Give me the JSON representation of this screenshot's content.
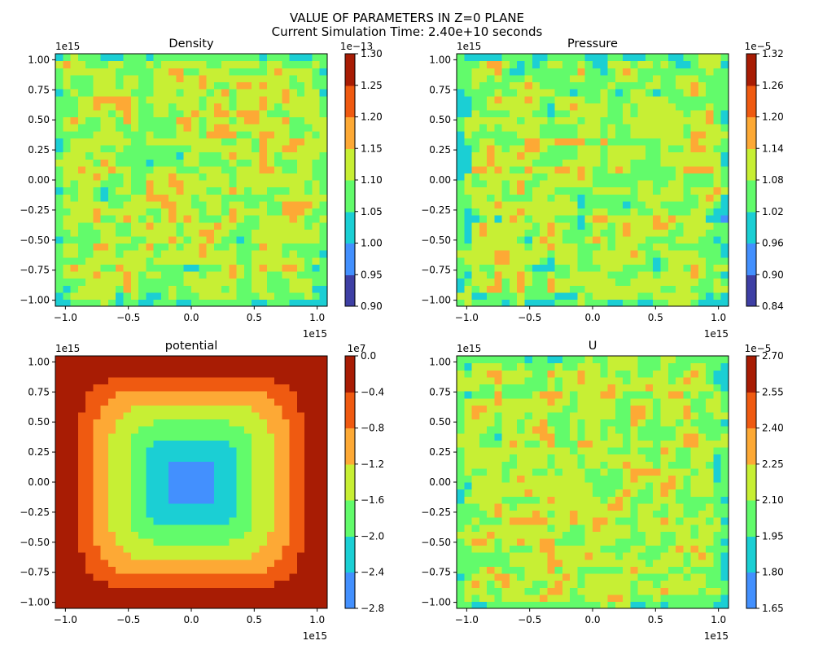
{
  "figure": {
    "suptitle_line1": "VALUE OF PARAMETERS IN Z=0 PLANE",
    "suptitle_line2": "Current Simulation Time: 2.40e+10 seconds"
  },
  "palette": [
    "#3e3fa4",
    "#4390fe",
    "#1bcfd4",
    "#62fb6b",
    "#c7ef34",
    "#fda935",
    "#ef5a11",
    "#a81c04"
  ],
  "chart_data": [
    {
      "type": "heatmap",
      "title": "Density",
      "field": "noise",
      "xlim": [
        -1.08,
        1.08
      ],
      "ylim": [
        -1.05,
        1.05
      ],
      "xticks": [
        -1.0,
        -0.5,
        0.0,
        0.5,
        1.0
      ],
      "xtick_labels": [
        "−1.0",
        "−0.5",
        "0.0",
        "0.5",
        "1.0"
      ],
      "yticks": [
        -1.0,
        -0.75,
        -0.5,
        -0.25,
        0.0,
        0.25,
        0.5,
        0.75,
        1.0
      ],
      "ytick_labels": [
        "−1.00",
        "−0.75",
        "−0.50",
        "−0.25",
        "0.00",
        "0.25",
        "0.50",
        "0.75",
        "1.00"
      ],
      "x_offset_label": "1e15",
      "y_offset_label": "1e15",
      "colorbar_levels": [
        0.9,
        0.95,
        1.0,
        1.05,
        1.1,
        1.15,
        1.2,
        1.25,
        1.3
      ],
      "colorbar_labels": [
        "0.90",
        "0.95",
        "1.00",
        "1.05",
        "1.10",
        "1.15",
        "1.20",
        "1.25",
        "1.30"
      ],
      "colorbar_offset_label": "1e−13",
      "noise_base": 1.112,
      "noise_amp": 0.045,
      "seed": 11
    },
    {
      "type": "heatmap",
      "title": "Pressure",
      "field": "noise",
      "xlim": [
        -1.08,
        1.08
      ],
      "ylim": [
        -1.05,
        1.05
      ],
      "xticks": [
        -1.0,
        -0.5,
        0.0,
        0.5,
        1.0
      ],
      "xtick_labels": [
        "−1.0",
        "−0.5",
        "0.0",
        "0.5",
        "1.0"
      ],
      "yticks": [
        -1.0,
        -0.75,
        -0.5,
        -0.25,
        0.0,
        0.25,
        0.5,
        0.75,
        1.0
      ],
      "ytick_labels": [
        "−1.00",
        "−0.75",
        "−0.50",
        "−0.25",
        "0.00",
        "0.25",
        "0.50",
        "0.75",
        "1.00"
      ],
      "x_offset_label": "1e15",
      "y_offset_label": "1e15",
      "colorbar_levels": [
        0.84,
        0.9,
        0.96,
        1.02,
        1.08,
        1.14,
        1.2,
        1.26,
        1.32
      ],
      "colorbar_labels": [
        "0.84",
        "0.90",
        "0.96",
        "1.02",
        "1.08",
        "1.14",
        "1.20",
        "1.26",
        "1.32"
      ],
      "colorbar_offset_label": "1e−5",
      "noise_base": 1.09,
      "noise_amp": 0.058,
      "seed": 29
    },
    {
      "type": "heatmap",
      "title": "potential",
      "field": "potential",
      "xlim": [
        -1.08,
        1.08
      ],
      "ylim": [
        -1.05,
        1.05
      ],
      "xticks": [
        -1.0,
        -0.5,
        0.0,
        0.5,
        1.0
      ],
      "xtick_labels": [
        "−1.0",
        "−0.5",
        "0.0",
        "0.5",
        "1.0"
      ],
      "yticks": [
        -1.0,
        -0.75,
        -0.5,
        -0.25,
        0.0,
        0.25,
        0.5,
        0.75,
        1.0
      ],
      "ytick_labels": [
        "−1.00",
        "−0.75",
        "−0.50",
        "−0.25",
        "0.00",
        "0.25",
        "0.50",
        "0.75",
        "1.00"
      ],
      "x_offset_label": "1e15",
      "y_offset_label": "1e15",
      "colorbar_levels": [
        -2.8,
        -2.4,
        -2.0,
        -1.6,
        -1.2,
        -0.8,
        -0.4,
        0.0
      ],
      "colorbar_labels": [
        "−2.8",
        "−2.4",
        "−2.0",
        "−1.6",
        "−1.2",
        "−0.8",
        "−0.4",
        "0.0"
      ],
      "colorbar_offset_label": "1e7",
      "potential_min": -2.65,
      "potential_max": 0.12,
      "potential_power": 5.5
    },
    {
      "type": "heatmap",
      "title": "U",
      "field": "noise",
      "xlim": [
        -1.08,
        1.08
      ],
      "ylim": [
        -1.05,
        1.05
      ],
      "xticks": [
        -1.0,
        -0.5,
        0.0,
        0.5,
        1.0
      ],
      "xtick_labels": [
        "−1.0",
        "−0.5",
        "0.0",
        "0.5",
        "1.0"
      ],
      "yticks": [
        -1.0,
        -0.75,
        -0.5,
        -0.25,
        0.0,
        0.25,
        0.5,
        0.75,
        1.0
      ],
      "ytick_labels": [
        "−1.00",
        "−0.75",
        "−0.50",
        "−0.25",
        "0.00",
        "0.25",
        "0.50",
        "0.75",
        "1.00"
      ],
      "x_offset_label": "1e15",
      "y_offset_label": "1e15",
      "colorbar_levels": [
        1.65,
        1.8,
        1.95,
        2.1,
        2.25,
        2.4,
        2.55,
        2.7
      ],
      "colorbar_labels": [
        "1.65",
        "1.80",
        "1.95",
        "2.10",
        "2.25",
        "2.40",
        "2.55",
        "2.70"
      ],
      "colorbar_offset_label": "1e−5",
      "noise_base": 2.15,
      "noise_amp": 0.13,
      "seed": 47
    }
  ]
}
